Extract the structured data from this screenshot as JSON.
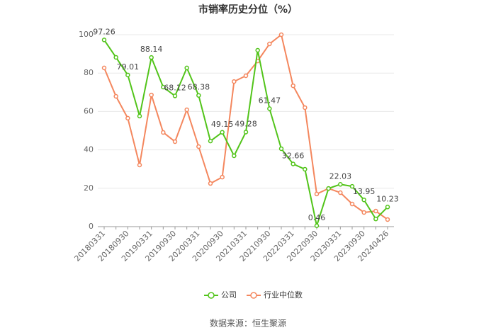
{
  "chart_data": {
    "type": "line",
    "title": "市销率历史分位（%）",
    "categories": [
      "20180331",
      null,
      "20180930",
      null,
      "20190331",
      null,
      "20190930",
      null,
      "20200331",
      null,
      "20200930",
      null,
      "20210331",
      null,
      "20210930",
      null,
      "20220331",
      null,
      "20220930",
      null,
      "20230331",
      null,
      "20230930",
      null,
      "20240426"
    ],
    "series": [
      {
        "name": "公司",
        "color": "#52c41a",
        "values": [
          97.26,
          88.2,
          79.01,
          57.6,
          88.14,
          72.7,
          68.12,
          82.7,
          68.38,
          44.6,
          49.15,
          36.9,
          49.28,
          91.9,
          61.47,
          40.6,
          32.66,
          29.9,
          0.46,
          19.9,
          22.03,
          21.0,
          13.95,
          4.0,
          10.23
        ],
        "value_labels": [
          "97.26",
          null,
          "79.01",
          null,
          "88.14",
          null,
          "68.12",
          null,
          "68.38",
          null,
          "49.15",
          null,
          "49.28",
          null,
          "61.47",
          null,
          "32.66",
          null,
          "0.46",
          null,
          "22.03",
          null,
          "13.95",
          null,
          "10.23"
        ]
      },
      {
        "name": "行业中位数",
        "color": "#f4875e",
        "values": [
          82.7,
          67.9,
          56.5,
          32.1,
          68.6,
          49.1,
          44.3,
          60.9,
          41.7,
          22.5,
          25.8,
          75.6,
          78.6,
          86.3,
          95.2,
          100,
          73.4,
          62.0,
          17.0,
          19.9,
          17.7,
          11.8,
          7.4,
          8.1,
          3.7
        ]
      }
    ],
    "ylim": [
      0,
      100
    ],
    "yticks": [
      0,
      20,
      40,
      60,
      80,
      100
    ],
    "grid": true,
    "legend": "bottom",
    "source": "数据来源：恒生聚源"
  }
}
